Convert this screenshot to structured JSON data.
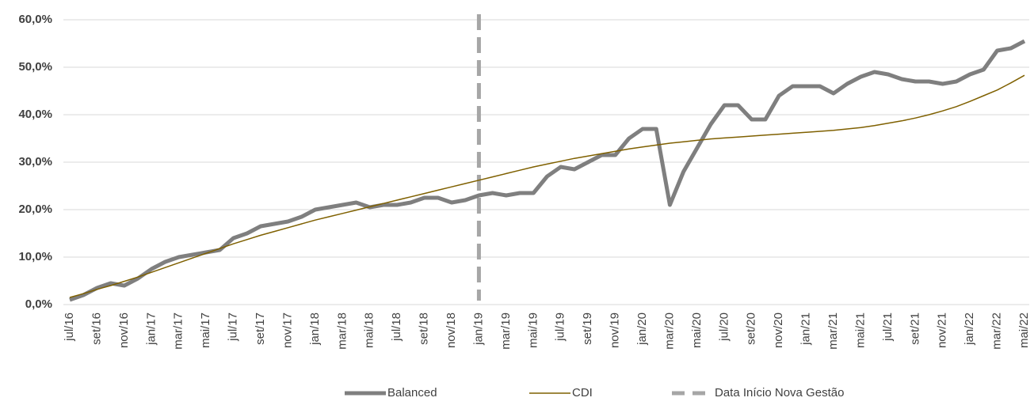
{
  "chart_data": {
    "type": "line",
    "categories": [
      "jul/16",
      null,
      "set/16",
      null,
      "nov/16",
      null,
      "jan/17",
      null,
      "mar/17",
      null,
      "mai/17",
      null,
      "jul/17",
      null,
      "set/17",
      null,
      "nov/17",
      null,
      "jan/18",
      null,
      "mar/18",
      null,
      "mai/18",
      null,
      "jul/18",
      null,
      "set/18",
      null,
      "nov/18",
      null,
      "jan/19",
      null,
      "mar/19",
      null,
      "mai/19",
      null,
      "jul/19",
      null,
      "set/19",
      null,
      "nov/19",
      null,
      "jan/20",
      null,
      "mar/20",
      null,
      "mai/20",
      null,
      "jul/20",
      null,
      "set/20",
      null,
      "nov/20",
      null,
      "jan/21",
      null,
      "mar/21",
      null,
      "mai/21",
      null,
      "jul/21",
      null,
      "set/21",
      null,
      "nov/21",
      null,
      "jan/22",
      null,
      "mar/22",
      null,
      "mai/22"
    ],
    "series": [
      {
        "name": "Balanced",
        "color": "#7f7f7f",
        "width": 5,
        "values": [
          1,
          2,
          3.5,
          4.5,
          4,
          5.5,
          7.5,
          9,
          10,
          10.5,
          11,
          11.5,
          14,
          15,
          16.5,
          17,
          17.5,
          18.5,
          20,
          20.5,
          21,
          21.5,
          20.5,
          21,
          21,
          21.5,
          22.5,
          22.5,
          21.5,
          22,
          23,
          23.5,
          23,
          23.5,
          23.5,
          27,
          29,
          28.5,
          30,
          31.5,
          31.5,
          35,
          37,
          37,
          21,
          28,
          33,
          38,
          42,
          42,
          39,
          39,
          44,
          46,
          46,
          46,
          44.5,
          46.5,
          48,
          49,
          48.5,
          47.5,
          47,
          47,
          46.5,
          47,
          48.5,
          49.5,
          53.5,
          54,
          55.5
        ]
      },
      {
        "name": "CDI",
        "color": "#7f6000",
        "width": 1.5,
        "values": [
          1.5,
          2.3,
          3.2,
          4,
          4.9,
          5.8,
          6.8,
          7.8,
          8.8,
          9.8,
          10.8,
          11.8,
          12.8,
          13.7,
          14.6,
          15.4,
          16.2,
          17,
          17.8,
          18.5,
          19.2,
          19.9,
          20.6,
          21.3,
          22,
          22.7,
          23.4,
          24.1,
          24.8,
          25.5,
          26.2,
          26.9,
          27.6,
          28.3,
          29,
          29.6,
          30.2,
          30.8,
          31.3,
          31.8,
          32.3,
          32.8,
          33.2,
          33.6,
          34,
          34.3,
          34.6,
          34.9,
          35.1,
          35.3,
          35.5,
          35.7,
          35.9,
          36.1,
          36.3,
          36.5,
          36.7,
          37,
          37.3,
          37.7,
          38.2,
          38.7,
          39.3,
          40,
          40.8,
          41.7,
          42.8,
          44,
          45.2,
          46.7,
          48.3
        ]
      }
    ],
    "vline": {
      "name": "Data Início Nova Gestão",
      "color": "#a6a6a6",
      "x": "jan/19"
    },
    "ylim": [
      0,
      60
    ],
    "yticks": [
      {
        "value": 0,
        "label": "0,0%"
      },
      {
        "value": 10,
        "label": "10,0%"
      },
      {
        "value": 20,
        "label": "20,0%"
      },
      {
        "value": 30,
        "label": "30,0%"
      },
      {
        "value": 40,
        "label": "40,0%"
      },
      {
        "value": 50,
        "label": "50,0%"
      },
      {
        "value": 60,
        "label": "60,0%"
      }
    ],
    "grid": true,
    "legend": "bottom"
  }
}
